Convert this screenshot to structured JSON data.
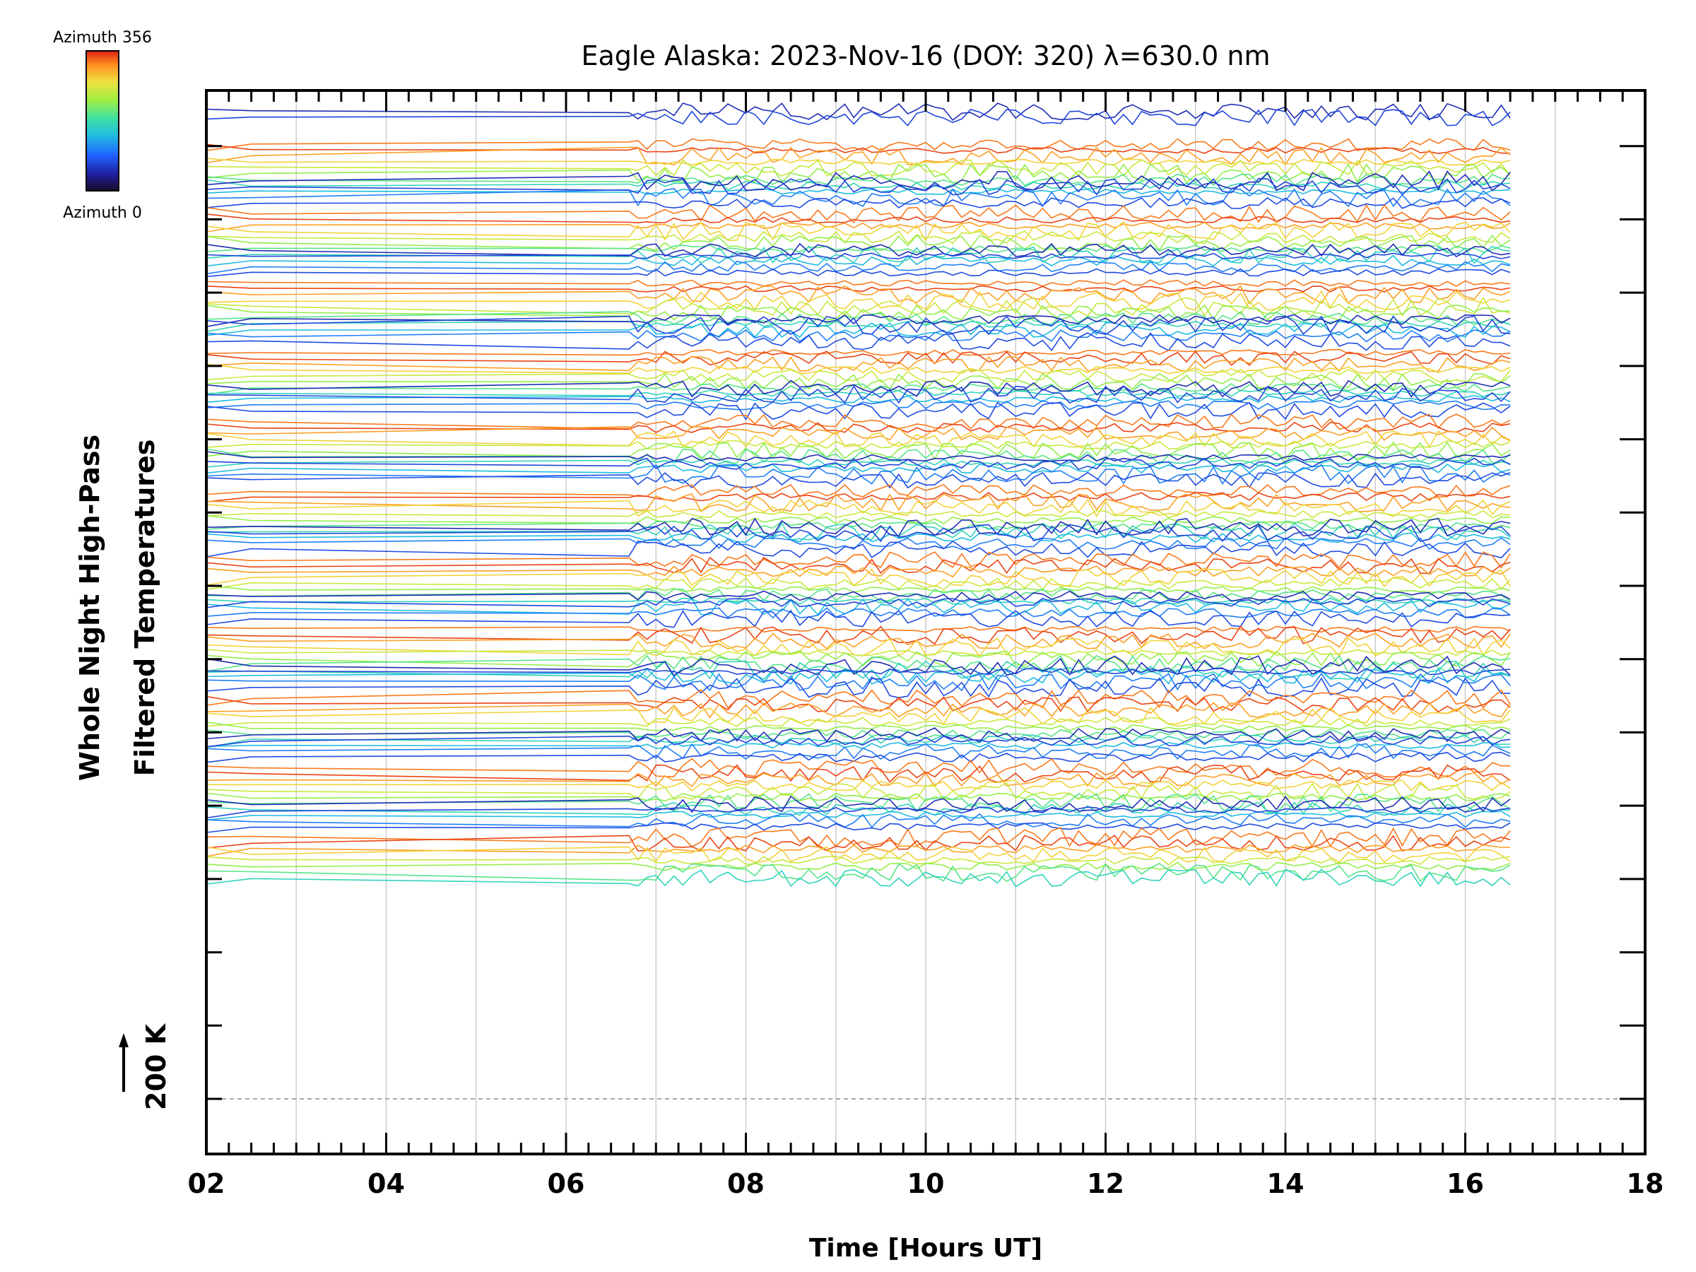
{
  "chart_data": {
    "type": "line",
    "title": "Eagle Alaska: 2023-Nov-16 (DOY: 320) λ=630.0 nm",
    "xlabel": "Time [Hours UT]",
    "ylabel_line1": "Whole Night High-Pass",
    "ylabel_line2": "Filtered Temperatures",
    "scale_label": "200 K",
    "xlim": [
      2,
      18
    ],
    "x_ticks": [
      2,
      4,
      6,
      8,
      10,
      12,
      14,
      16,
      18
    ],
    "x_tick_labels": [
      "02",
      "04",
      "06",
      "08",
      "10",
      "12",
      "14",
      "16",
      "18"
    ],
    "x_data_range": [
      2.0,
      16.5
    ],
    "dense_sampling_start": 6.7,
    "sample_interval_hours": 0.1,
    "grid": "vertical-hourly",
    "colorbar": {
      "label_top": "Azimuth 356",
      "label_bottom": "Azimuth 0",
      "colormap": [
        "#1a0a2a",
        "#2020a0",
        "#2060ff",
        "#20c0e0",
        "#40e0a0",
        "#a0f040",
        "#f0e040",
        "#ff9020",
        "#e02010"
      ],
      "placement": "top-left"
    },
    "series_count": 140,
    "series_groups": 11,
    "series_per_group": 13,
    "series_note": "Stacked high-pass filtered temperature traces, one per azimuth, offset vertically; colour encodes azimuth 0–356."
  }
}
